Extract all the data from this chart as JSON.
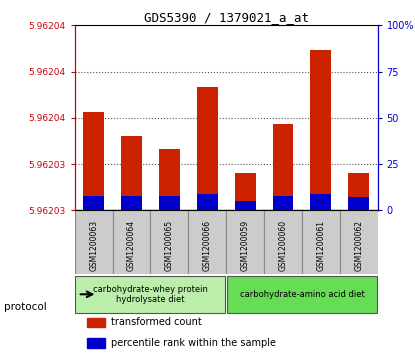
{
  "title": "GDS5390 / 1379021_a_at",
  "samples": [
    "GSM1200063",
    "GSM1200064",
    "GSM1200065",
    "GSM1200066",
    "GSM1200059",
    "GSM1200060",
    "GSM1200061",
    "GSM1200062"
  ],
  "transformed_count": [
    5.962036,
    5.962034,
    5.962033,
    5.962038,
    5.962031,
    5.962035,
    5.962041,
    5.962031
  ],
  "percentile_rank": [
    8,
    8,
    8,
    9,
    5,
    8,
    9,
    7
  ],
  "ylim_left": [
    5.962028,
    5.962043
  ],
  "ylim_right": [
    0,
    100
  ],
  "yticks_right": [
    0,
    25,
    50,
    75,
    100
  ],
  "ytick_labels_right": [
    "0",
    "25",
    "50",
    "75",
    "100%"
  ],
  "groups": [
    {
      "label": "carbohydrate-whey protein\nhydrolysate diet",
      "start": 0,
      "end": 4,
      "color": "#bbeeaa"
    },
    {
      "label": "carbohydrate-amino acid diet",
      "start": 4,
      "end": 8,
      "color": "#66dd55"
    }
  ],
  "bar_color_red": "#cc2200",
  "bar_color_blue": "#0000cc",
  "bar_width": 0.55,
  "grid_color": "#555555",
  "protocol_text": "protocol",
  "tick_color_left": "#cc0000",
  "tick_color_right": "#0000cc",
  "bg_plot": "#ffffff",
  "bg_xtick": "#cccccc",
  "legend_items": [
    {
      "color": "#cc2200",
      "label": "transformed count"
    },
    {
      "color": "#0000cc",
      "label": "percentile rank within the sample"
    }
  ]
}
